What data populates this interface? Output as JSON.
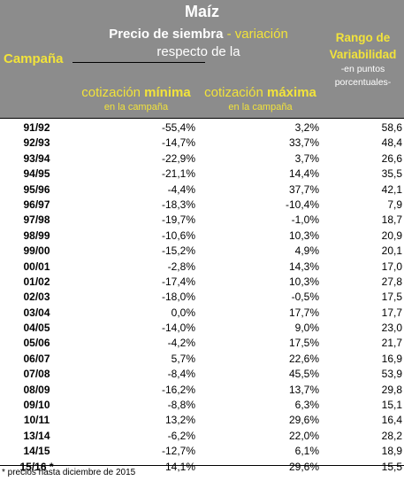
{
  "header": {
    "title": "Maíz",
    "campana_label": "Campaña",
    "precio_bold": "Precio de siembra",
    "precio_variacion": " - variación",
    "precio_line2": "respecto de la",
    "rango_label": "Rango de Variabilidad",
    "rango_note": "-en puntos porcentuales-",
    "col_min_prefix": "cotización ",
    "col_min_bold": "mínima",
    "col_max_prefix": "cotización ",
    "col_max_bold": "máxima",
    "col_sub": "en la campaña"
  },
  "colors": {
    "header_bg": "#8c8c8c",
    "accent_yellow": "#f2e33a"
  },
  "rows": [
    {
      "campana": "91/92",
      "min": "-55,4%",
      "max": "3,2%",
      "rango": "58,6"
    },
    {
      "campana": "92/93",
      "min": "-14,7%",
      "max": "33,7%",
      "rango": "48,4"
    },
    {
      "campana": "93/94",
      "min": "-22,9%",
      "max": "3,7%",
      "rango": "26,6"
    },
    {
      "campana": "94/95",
      "min": "-21,1%",
      "max": "14,4%",
      "rango": "35,5"
    },
    {
      "campana": "95/96",
      "min": "-4,4%",
      "max": "37,7%",
      "rango": "42,1"
    },
    {
      "campana": "96/97",
      "min": "-18,3%",
      "max": "-10,4%",
      "rango": "7,9"
    },
    {
      "campana": "97/98",
      "min": "-19,7%",
      "max": "-1,0%",
      "rango": "18,7"
    },
    {
      "campana": "98/99",
      "min": "-10,6%",
      "max": "10,3%",
      "rango": "20,9"
    },
    {
      "campana": "99/00",
      "min": "-15,2%",
      "max": "4,9%",
      "rango": "20,1"
    },
    {
      "campana": "00/01",
      "min": "-2,8%",
      "max": "14,3%",
      "rango": "17,0"
    },
    {
      "campana": "01/02",
      "min": "-17,4%",
      "max": "10,3%",
      "rango": "27,8"
    },
    {
      "campana": "02/03",
      "min": "-18,0%",
      "max": "-0,5%",
      "rango": "17,5"
    },
    {
      "campana": "03/04",
      "min": "0,0%",
      "max": "17,7%",
      "rango": "17,7"
    },
    {
      "campana": "04/05",
      "min": "-14,0%",
      "max": "9,0%",
      "rango": "23,0"
    },
    {
      "campana": "05/06",
      "min": "-4,2%",
      "max": "17,5%",
      "rango": "21,7"
    },
    {
      "campana": "06/07",
      "min": "5,7%",
      "max": "22,6%",
      "rango": "16,9"
    },
    {
      "campana": "07/08",
      "min": "-8,4%",
      "max": "45,5%",
      "rango": "53,9"
    },
    {
      "campana": "08/09",
      "min": "-16,2%",
      "max": "13,7%",
      "rango": "29,8"
    },
    {
      "campana": "09/10",
      "min": "-8,8%",
      "max": "6,3%",
      "rango": "15,1"
    },
    {
      "campana": "10/11",
      "min": "13,2%",
      "max": "29,6%",
      "rango": "16,4"
    },
    {
      "campana": "13/14",
      "min": "-6,2%",
      "max": "22,0%",
      "rango": "28,2"
    },
    {
      "campana": "14/15",
      "min": "-12,7%",
      "max": "6,1%",
      "rango": "18,9"
    },
    {
      "campana": "15/16 *",
      "min": "14,1%",
      "max": "29,6%",
      "rango": "15,5"
    }
  ],
  "footnote": "* precios hasta diciembre de 2015"
}
